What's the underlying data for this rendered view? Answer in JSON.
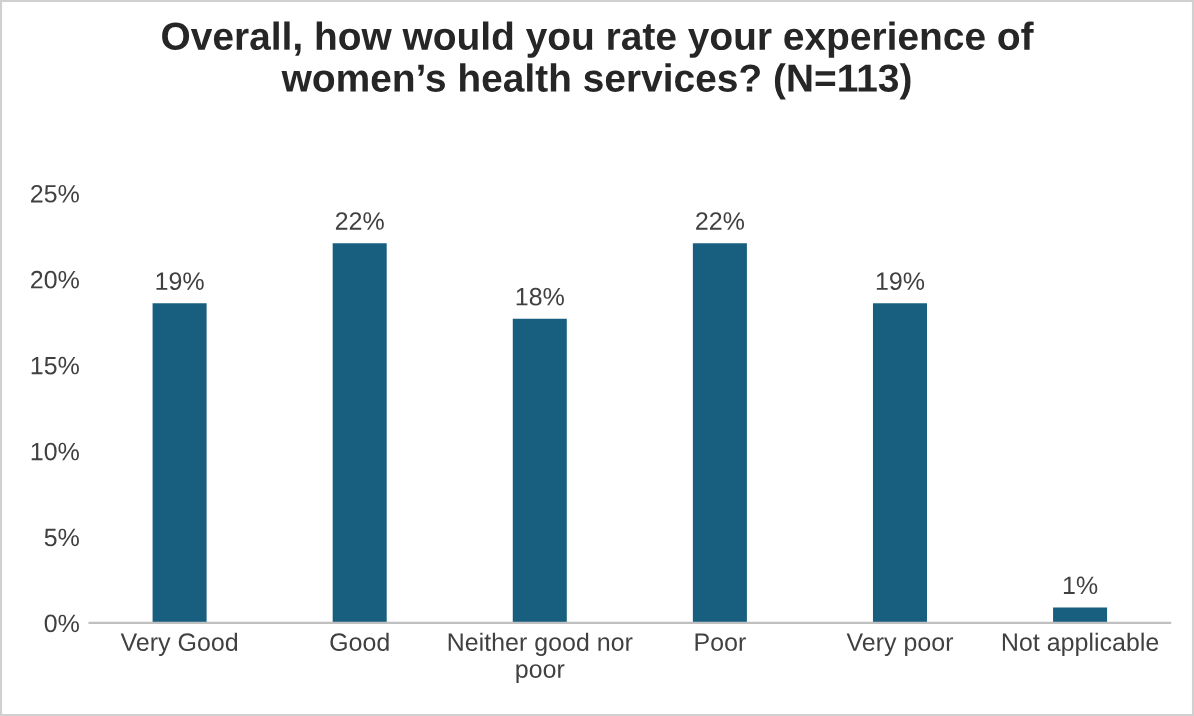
{
  "chart_data": {
    "type": "bar",
    "title": "Overall, how would you rate your experience of\nwomen’s health services? (N=113)",
    "categories": [
      "Very Good",
      "Good",
      "Neither good nor\npoor",
      "Poor",
      "Very poor",
      "Not applicable"
    ],
    "values": [
      18.6,
      22.1,
      17.7,
      22.1,
      18.6,
      0.9
    ],
    "value_labels": [
      "19%",
      "22%",
      "18%",
      "22%",
      "19%",
      "1%"
    ],
    "color": "#185f7f",
    "ylim": [
      0,
      25
    ],
    "yticks": [
      {
        "value": 0,
        "label": "0%"
      },
      {
        "value": 5,
        "label": "5%"
      },
      {
        "value": 10,
        "label": "10%"
      },
      {
        "value": 15,
        "label": "15%"
      },
      {
        "value": 20,
        "label": "20%"
      },
      {
        "value": 25,
        "label": "25%"
      }
    ],
    "grid": false
  }
}
